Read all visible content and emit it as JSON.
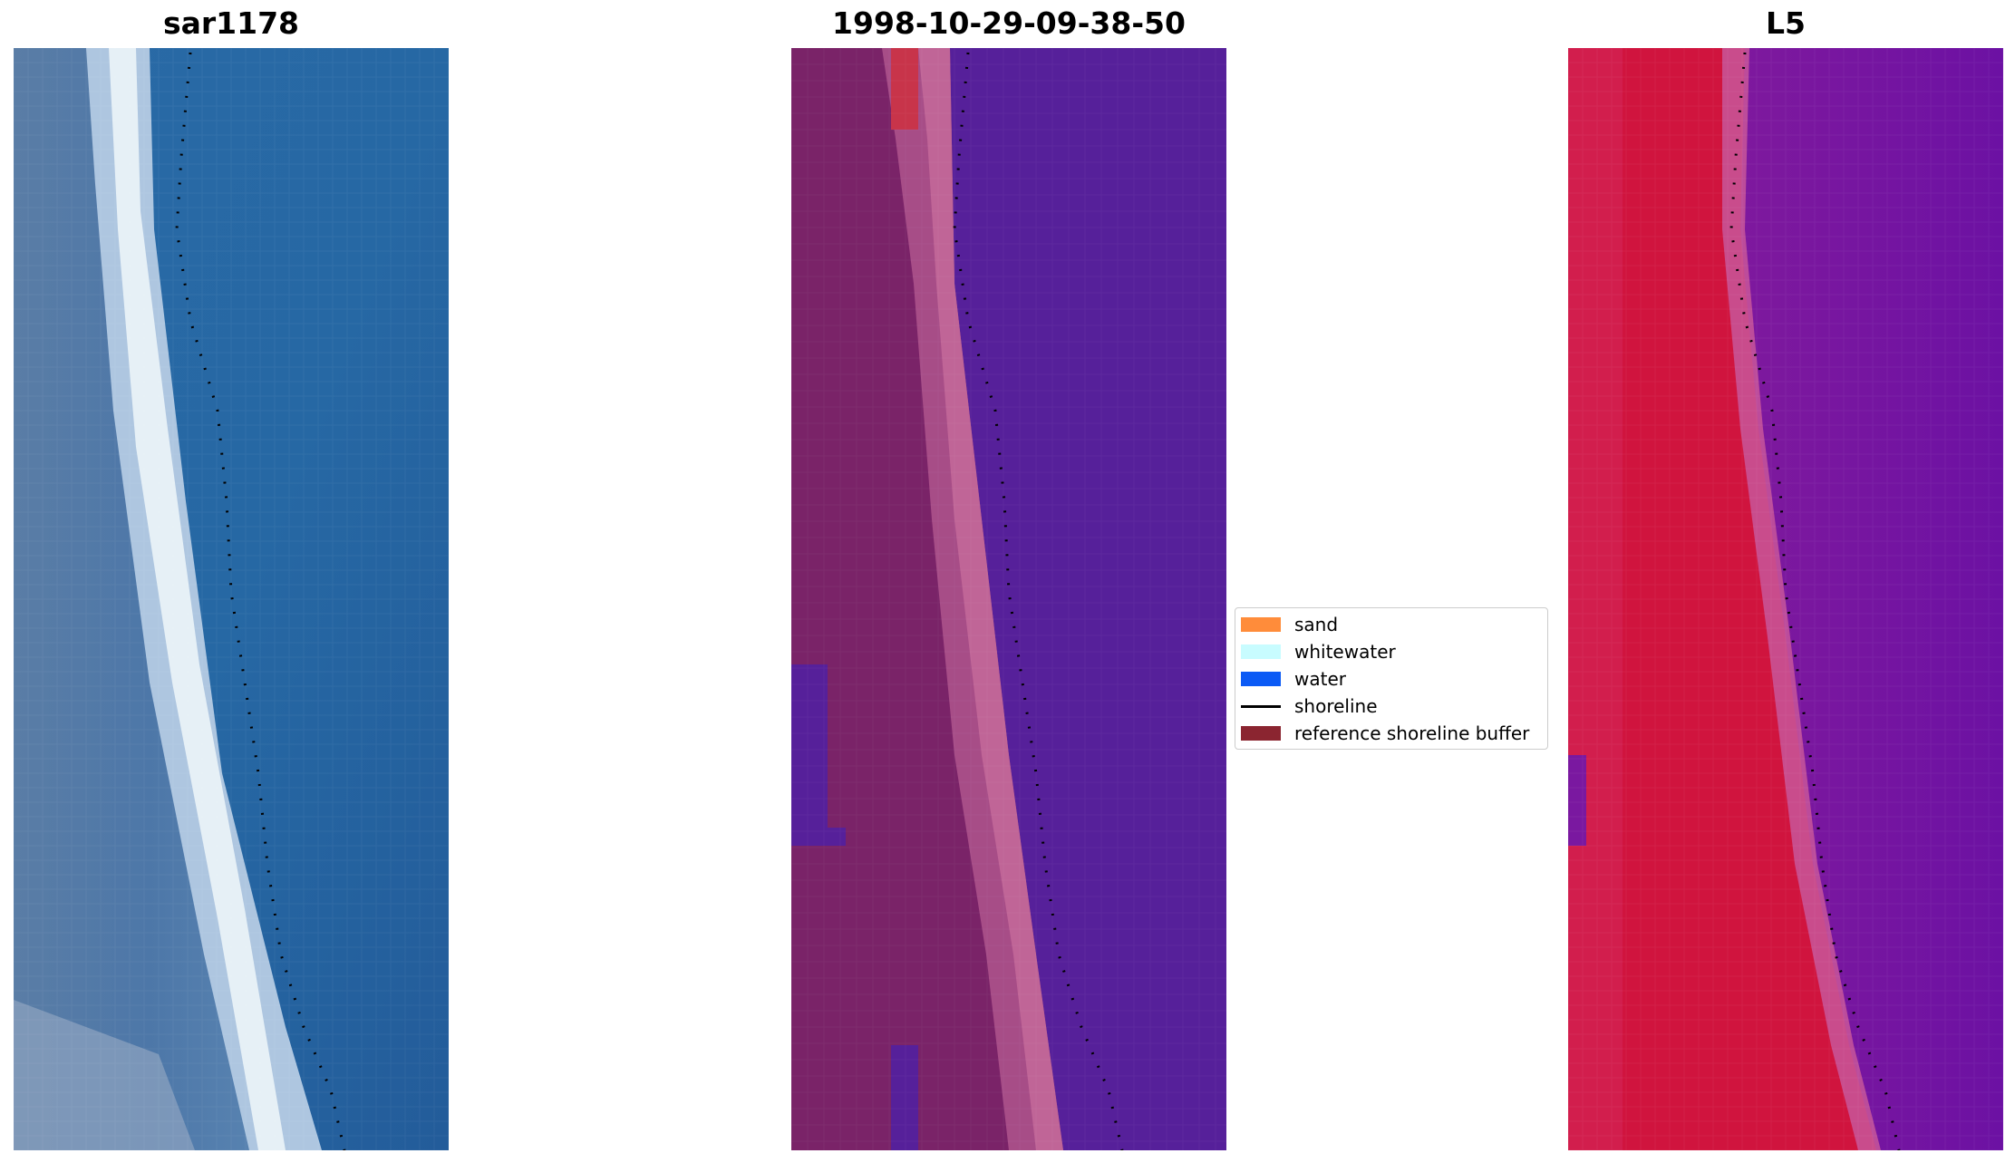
{
  "figure": {
    "panels": [
      {
        "title": "sar1178",
        "kind": "rgb-satellite-image"
      },
      {
        "title": "1998-10-29-09-38-50",
        "kind": "classified-image"
      },
      {
        "title": "L5",
        "kind": "mndwi-image"
      }
    ],
    "legend": {
      "items": [
        {
          "label": "sand",
          "color": "#ff8c3a",
          "symbol": "patch"
        },
        {
          "label": "whitewater",
          "color": "#c8fcff",
          "symbol": "patch"
        },
        {
          "label": "water",
          "color": "#0b5af5",
          "symbol": "patch"
        },
        {
          "label": "shoreline",
          "color": "#000000",
          "symbol": "line"
        },
        {
          "label": "reference shoreline buffer",
          "color": "#8b2530",
          "symbol": "patch"
        }
      ]
    }
  }
}
